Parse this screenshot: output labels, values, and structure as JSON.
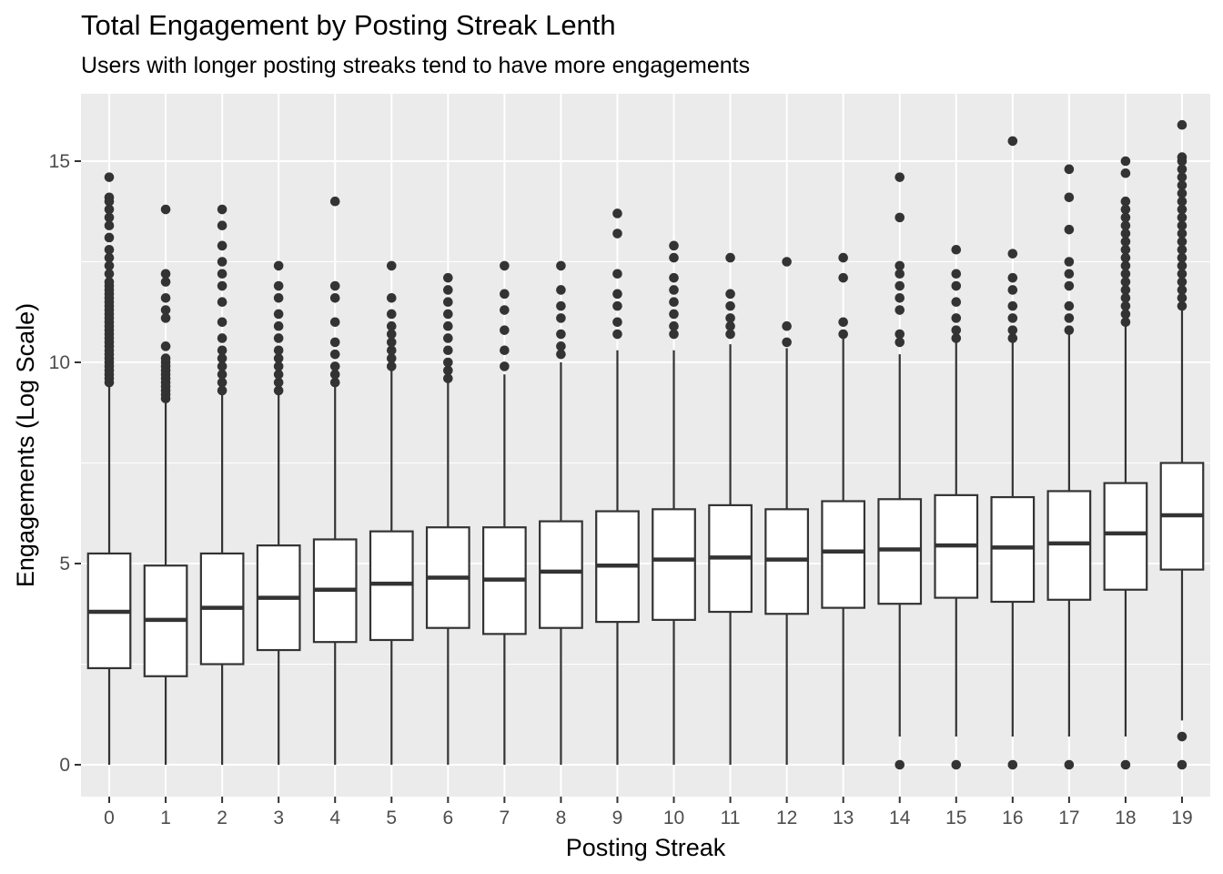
{
  "chart_data": {
    "type": "boxplot",
    "title": "Total Engagement by Posting Streak Lenth",
    "subtitle": "Users with longer posting streaks tend to have more engagements",
    "xlabel": "Posting Streak",
    "ylabel": "Engagements (Log Scale)",
    "ylim": [
      -0.8,
      16.5
    ],
    "yticks": [
      0,
      5,
      10,
      15
    ],
    "grid": true,
    "categories": [
      "0",
      "1",
      "2",
      "3",
      "4",
      "5",
      "6",
      "7",
      "8",
      "9",
      "10",
      "11",
      "12",
      "13",
      "14",
      "15",
      "16",
      "17",
      "18",
      "19"
    ],
    "boxes": [
      {
        "x": "0",
        "q1": 2.4,
        "median": 3.8,
        "q3": 5.25,
        "whisker_low": 0,
        "whisker_high": 9.5,
        "outliers": [
          9.5,
          9.6,
          9.7,
          9.8,
          9.9,
          10.0,
          10.1,
          10.2,
          10.3,
          10.4,
          10.5,
          10.6,
          10.7,
          10.8,
          10.9,
          11.0,
          11.1,
          11.2,
          11.3,
          11.4,
          11.5,
          11.6,
          11.7,
          11.8,
          11.9,
          12.0,
          12.2,
          12.4,
          12.6,
          12.8,
          13.1,
          13.4,
          13.6,
          13.8,
          14.0,
          14.1,
          14.6
        ]
      },
      {
        "x": "1",
        "q1": 2.2,
        "median": 3.6,
        "q3": 4.95,
        "whisker_low": 0,
        "whisker_high": 9.05,
        "outliers": [
          9.1,
          9.2,
          9.3,
          9.4,
          9.5,
          9.6,
          9.7,
          9.8,
          9.9,
          10.0,
          10.1,
          10.4,
          11.1,
          11.3,
          11.6,
          12.0,
          12.2,
          13.8
        ]
      },
      {
        "x": "2",
        "q1": 2.5,
        "median": 3.9,
        "q3": 5.25,
        "whisker_low": 0,
        "whisker_high": 9.3,
        "outliers": [
          9.3,
          9.5,
          9.7,
          9.9,
          10.1,
          10.3,
          10.6,
          11.0,
          11.5,
          11.9,
          12.2,
          12.5,
          12.9,
          13.4,
          13.8
        ]
      },
      {
        "x": "3",
        "q1": 2.85,
        "median": 4.15,
        "q3": 5.45,
        "whisker_low": 0,
        "whisker_high": 9.3,
        "outliers": [
          9.3,
          9.5,
          9.7,
          9.9,
          10.1,
          10.3,
          10.6,
          10.9,
          11.2,
          11.6,
          11.9,
          12.4
        ]
      },
      {
        "x": "4",
        "q1": 3.05,
        "median": 4.35,
        "q3": 5.6,
        "whisker_low": 0,
        "whisker_high": 9.45,
        "outliers": [
          9.5,
          9.7,
          9.9,
          10.2,
          10.5,
          11.0,
          11.6,
          11.9,
          14.0
        ]
      },
      {
        "x": "5",
        "q1": 3.1,
        "median": 4.5,
        "q3": 5.8,
        "whisker_low": 0,
        "whisker_high": 9.85,
        "outliers": [
          9.9,
          10.1,
          10.3,
          10.5,
          10.7,
          10.9,
          11.2,
          11.6,
          12.4
        ]
      },
      {
        "x": "6",
        "q1": 3.4,
        "median": 4.65,
        "q3": 5.9,
        "whisker_low": 0,
        "whisker_high": 9.6,
        "outliers": [
          9.6,
          9.8,
          10.0,
          10.3,
          10.6,
          10.9,
          11.2,
          11.5,
          11.8,
          12.1
        ]
      },
      {
        "x": "7",
        "q1": 3.25,
        "median": 4.6,
        "q3": 5.9,
        "whisker_low": 0,
        "whisker_high": 9.7,
        "outliers": [
          9.9,
          10.3,
          10.8,
          11.3,
          11.7,
          12.4
        ]
      },
      {
        "x": "8",
        "q1": 3.4,
        "median": 4.8,
        "q3": 6.05,
        "whisker_low": 0,
        "whisker_high": 10.0,
        "outliers": [
          10.2,
          10.4,
          10.7,
          11.1,
          11.4,
          11.8,
          12.4
        ]
      },
      {
        "x": "9",
        "q1": 3.55,
        "median": 4.95,
        "q3": 6.3,
        "whisker_low": 0,
        "whisker_high": 10.3,
        "outliers": [
          10.7,
          11.0,
          11.4,
          11.7,
          12.2,
          13.2,
          13.7
        ]
      },
      {
        "x": "10",
        "q1": 3.6,
        "median": 5.1,
        "q3": 6.35,
        "whisker_low": 0,
        "whisker_high": 10.3,
        "outliers": [
          10.7,
          10.9,
          11.2,
          11.5,
          11.8,
          12.1,
          12.6,
          12.9
        ]
      },
      {
        "x": "11",
        "q1": 3.8,
        "median": 5.15,
        "q3": 6.45,
        "whisker_low": 0,
        "whisker_high": 10.45,
        "outliers": [
          10.7,
          10.9,
          11.1,
          11.4,
          11.7,
          12.6
        ]
      },
      {
        "x": "12",
        "q1": 3.75,
        "median": 5.1,
        "q3": 6.35,
        "whisker_low": 0,
        "whisker_high": 10.35,
        "outliers": [
          10.5,
          10.9,
          12.5
        ]
      },
      {
        "x": "13",
        "q1": 3.9,
        "median": 5.3,
        "q3": 6.55,
        "whisker_low": 0,
        "whisker_high": 10.6,
        "outliers": [
          10.7,
          11.0,
          12.1,
          12.6
        ]
      },
      {
        "x": "14",
        "q1": 4.0,
        "median": 5.35,
        "q3": 6.6,
        "whisker_low": 0.7,
        "whisker_high": 10.2,
        "outliers": [
          0,
          10.5,
          10.7,
          11.3,
          11.6,
          11.9,
          12.2,
          12.4,
          13.6,
          14.6
        ]
      },
      {
        "x": "15",
        "q1": 4.15,
        "median": 5.45,
        "q3": 6.7,
        "whisker_low": 0.7,
        "whisker_high": 10.55,
        "outliers": [
          0,
          10.6,
          10.8,
          11.1,
          11.5,
          11.9,
          12.2,
          12.8
        ]
      },
      {
        "x": "16",
        "q1": 4.05,
        "median": 5.4,
        "q3": 6.65,
        "whisker_low": 0.7,
        "whisker_high": 10.55,
        "outliers": [
          0,
          10.6,
          10.8,
          11.1,
          11.4,
          11.8,
          12.1,
          12.7,
          15.5
        ]
      },
      {
        "x": "17",
        "q1": 4.1,
        "median": 5.5,
        "q3": 6.8,
        "whisker_low": 0.7,
        "whisker_high": 10.7,
        "outliers": [
          0,
          10.8,
          11.1,
          11.4,
          11.9,
          12.2,
          12.5,
          13.3,
          14.1,
          14.8
        ]
      },
      {
        "x": "18",
        "q1": 4.35,
        "median": 5.75,
        "q3": 7.0,
        "whisker_low": 0.7,
        "whisker_high": 10.9,
        "outliers": [
          0,
          11.0,
          11.2,
          11.4,
          11.6,
          11.8,
          12.0,
          12.2,
          12.4,
          12.6,
          12.8,
          13.0,
          13.2,
          13.4,
          13.6,
          13.8,
          14.0,
          14.7,
          15.0
        ]
      },
      {
        "x": "19",
        "q1": 4.85,
        "median": 6.2,
        "q3": 7.5,
        "whisker_low": 1.1,
        "whisker_high": 11.3,
        "outliers": [
          0,
          0.7,
          11.4,
          11.6,
          11.8,
          12.0,
          12.2,
          12.4,
          12.6,
          12.8,
          13.0,
          13.2,
          13.4,
          13.6,
          13.8,
          14.0,
          14.2,
          14.4,
          14.6,
          14.8,
          15.0,
          15.1,
          15.9
        ]
      }
    ]
  }
}
